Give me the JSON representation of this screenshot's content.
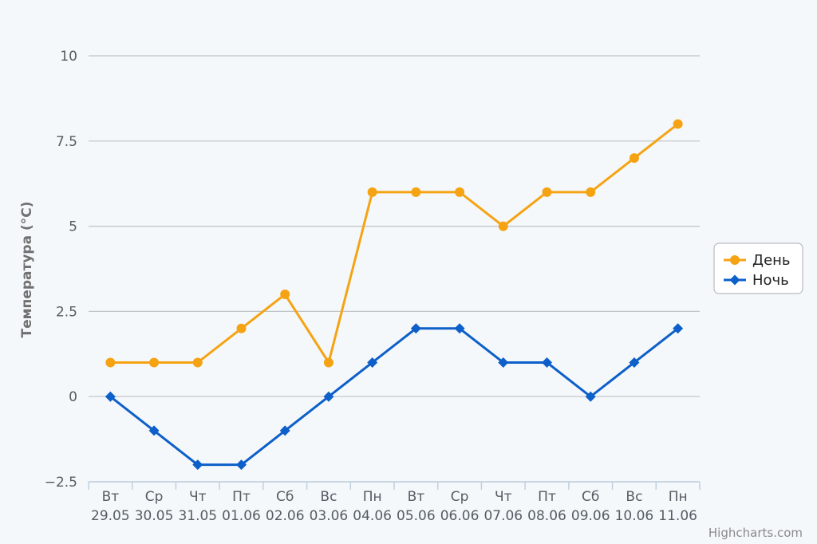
{
  "chart_data": {
    "type": "line",
    "ylabel": "Температура (°C)",
    "ylim": [
      -2.5,
      10
    ],
    "yticks": [
      "−2.5",
      "0",
      "2.5",
      "5",
      "7.5",
      "10"
    ],
    "ytick_values": [
      -2.5,
      0,
      2.5,
      5,
      7.5,
      10
    ],
    "categories": [
      {
        "day": "Вт",
        "date": "29.05"
      },
      {
        "day": "Ср",
        "date": "30.05"
      },
      {
        "day": "Чт",
        "date": "31.05"
      },
      {
        "day": "Пт",
        "date": "01.06"
      },
      {
        "day": "Сб",
        "date": "02.06"
      },
      {
        "day": "Вс",
        "date": "03.06"
      },
      {
        "day": "Пн",
        "date": "04.06"
      },
      {
        "day": "Вт",
        "date": "05.06"
      },
      {
        "day": "Ср",
        "date": "06.06"
      },
      {
        "day": "Чт",
        "date": "07.06"
      },
      {
        "day": "Пт",
        "date": "08.06"
      },
      {
        "day": "Сб",
        "date": "09.06"
      },
      {
        "day": "Вс",
        "date": "10.06"
      },
      {
        "day": "Пн",
        "date": "11.06"
      }
    ],
    "series": [
      {
        "name": "День",
        "color": "#f6a313",
        "marker": "circle",
        "values": [
          1,
          1,
          1,
          2,
          3,
          1,
          6,
          6,
          6,
          5,
          6,
          6,
          7,
          8
        ]
      },
      {
        "name": "Ночь",
        "color": "#0d5fc9",
        "marker": "diamond",
        "values": [
          0,
          -1,
          -2,
          -2,
          -1,
          0,
          1,
          2,
          2,
          1,
          1,
          0,
          1,
          2
        ]
      }
    ],
    "grid": true,
    "legend_position": "right"
  },
  "credits": "Highcharts.com"
}
